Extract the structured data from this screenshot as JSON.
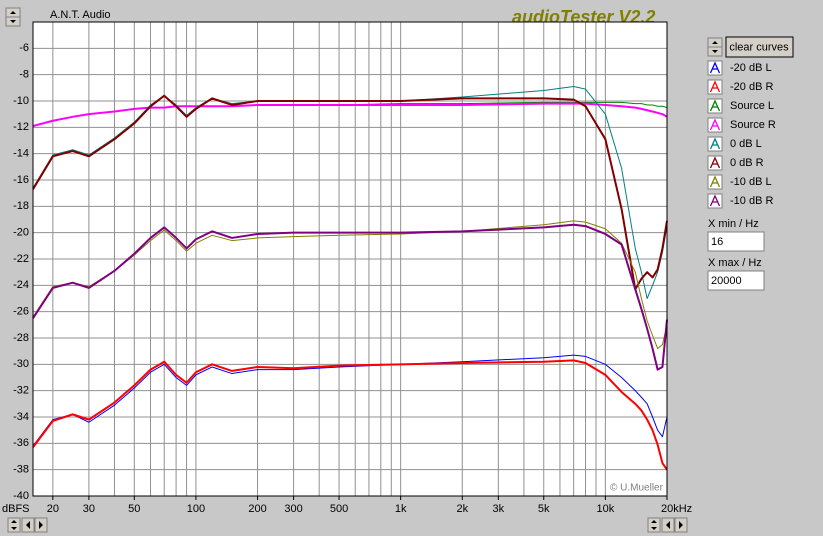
{
  "window": {
    "company": "A.N.T. Audio",
    "app_title": "audioTester V2.2",
    "copyright": "© U.Mueller",
    "y_unit": "dBFS",
    "clear_button": "clear curves",
    "xmin_label": "X min / Hz",
    "xmin_value": "16",
    "xmax_label": "X max / Hz",
    "xmax_value": "20000"
  },
  "chart_data": {
    "type": "line",
    "log_x": true,
    "grid": true,
    "x": [
      16,
      20,
      25,
      30,
      40,
      50,
      60,
      70,
      80,
      90,
      100,
      120,
      150,
      200,
      300,
      500,
      1000,
      2000,
      5000,
      7000,
      8000,
      10000,
      12000,
      14000,
      15000,
      16000,
      17000,
      18000,
      19000,
      20000
    ],
    "xlim": [
      16,
      20000
    ],
    "ylim": [
      -40,
      -4
    ],
    "xticks": [
      20,
      30,
      50,
      100,
      200,
      300,
      500,
      {
        "value": 1000,
        "label": "1k"
      },
      {
        "value": 2000,
        "label": "2k"
      },
      {
        "value": 3000,
        "label": "3k"
      },
      {
        "value": 5000,
        "label": "5k"
      },
      {
        "value": 10000,
        "label": "10k"
      },
      {
        "value": 20000,
        "label": "20kHz"
      }
    ],
    "xgrid": [
      20,
      30,
      40,
      50,
      60,
      70,
      80,
      90,
      100,
      200,
      300,
      400,
      500,
      600,
      700,
      800,
      900,
      1000,
      2000,
      3000,
      4000,
      5000,
      6000,
      7000,
      8000,
      9000,
      10000,
      20000
    ],
    "yticks": [
      -40,
      -38,
      -36,
      -34,
      -32,
      -30,
      -28,
      -26,
      -24,
      -22,
      -20,
      -18,
      -16,
      -14,
      -12,
      -10,
      -8,
      -6
    ],
    "series": [
      {
        "name": "-20 dB L",
        "color": "#0000ff",
        "width": 1,
        "values": [
          -36.2,
          -34.2,
          -33.8,
          -34.4,
          -33.1,
          -31.8,
          -30.6,
          -30.0,
          -31.0,
          -31.6,
          -30.8,
          -30.2,
          -30.7,
          -30.4,
          -30.4,
          -30.2,
          -30.0,
          -29.8,
          -29.5,
          -29.3,
          -29.4,
          -30.0,
          -31.0,
          -32.0,
          -32.5,
          -33.0,
          -34.0,
          -35.0,
          -35.5,
          -34.0
        ]
      },
      {
        "name": "-20 dB R",
        "color": "#ff0000",
        "width": 2,
        "values": [
          -36.3,
          -34.3,
          -33.8,
          -34.2,
          -32.9,
          -31.6,
          -30.4,
          -29.8,
          -30.8,
          -31.4,
          -30.6,
          -30.0,
          -30.5,
          -30.2,
          -30.3,
          -30.1,
          -30.0,
          -29.9,
          -29.8,
          -29.7,
          -29.9,
          -30.8,
          -32.1,
          -33.0,
          -33.5,
          -34.2,
          -35.0,
          -36.1,
          -37.5,
          -38.0
        ]
      },
      {
        "name": "Source L",
        "color": "#008000",
        "width": 1,
        "values": [
          -11.9,
          -11.5,
          -11.2,
          -11.0,
          -10.8,
          -10.6,
          -10.5,
          -10.5,
          -10.4,
          -10.4,
          -10.4,
          -10.4,
          -10.4,
          -10.3,
          -10.3,
          -10.3,
          -10.2,
          -10.2,
          -10.1,
          -10.1,
          -10.1,
          -10.1,
          -10.1,
          -10.2,
          -10.2,
          -10.3,
          -10.3,
          -10.4,
          -10.4,
          -10.5
        ]
      },
      {
        "name": "Source R",
        "color": "#ff00ff",
        "width": 2,
        "values": [
          -11.9,
          -11.5,
          -11.2,
          -11.0,
          -10.8,
          -10.6,
          -10.5,
          -10.5,
          -10.4,
          -10.4,
          -10.4,
          -10.4,
          -10.4,
          -10.3,
          -10.3,
          -10.3,
          -10.3,
          -10.3,
          -10.2,
          -10.2,
          -10.2,
          -10.3,
          -10.4,
          -10.5,
          -10.6,
          -10.7,
          -10.8,
          -10.9,
          -11.0,
          -11.2
        ]
      },
      {
        "name": "0 dB L",
        "color": "#008080",
        "width": 1,
        "values": [
          -16.6,
          -14.1,
          -13.7,
          -14.1,
          -12.8,
          -11.6,
          -10.3,
          -9.6,
          -10.3,
          -11.1,
          -10.5,
          -9.8,
          -10.2,
          -10.0,
          -10.0,
          -10.0,
          -10.0,
          -9.7,
          -9.2,
          -8.9,
          -9.1,
          -11.0,
          -15.1,
          -21.2,
          -23.0,
          -25.0,
          -24.0,
          -23.0,
          -21.5,
          -19.5
        ]
      },
      {
        "name": "0 dB R",
        "color": "#800000",
        "width": 2,
        "values": [
          -16.7,
          -14.2,
          -13.8,
          -14.2,
          -12.9,
          -11.7,
          -10.4,
          -9.6,
          -10.4,
          -11.2,
          -10.6,
          -9.8,
          -10.3,
          -10.0,
          -10.0,
          -10.0,
          -10.0,
          -9.8,
          -9.8,
          -9.9,
          -10.4,
          -12.9,
          -18.2,
          -24.3,
          -23.5,
          -23.0,
          -23.4,
          -22.8,
          -21.2,
          -19.1
        ]
      },
      {
        "name": "-10 dB L",
        "color": "#808000",
        "width": 1,
        "values": [
          -26.4,
          -24.1,
          -23.8,
          -24.1,
          -22.9,
          -21.7,
          -20.6,
          -19.8,
          -20.6,
          -21.4,
          -20.8,
          -20.2,
          -20.6,
          -20.4,
          -20.3,
          -20.2,
          -20.1,
          -19.9,
          -19.4,
          -19.1,
          -19.2,
          -19.7,
          -20.8,
          -23.0,
          -25.0,
          -26.7,
          -27.8,
          -28.8,
          -28.5,
          -27.0
        ]
      },
      {
        "name": "-10 dB R",
        "color": "#800080",
        "width": 2,
        "values": [
          -26.5,
          -24.2,
          -23.8,
          -24.2,
          -22.9,
          -21.6,
          -20.4,
          -19.6,
          -20.4,
          -21.2,
          -20.5,
          -19.9,
          -20.4,
          -20.1,
          -20.0,
          -20.0,
          -20.0,
          -19.9,
          -19.6,
          -19.4,
          -19.5,
          -20.1,
          -20.9,
          -24.3,
          -25.8,
          -27.3,
          -28.8,
          -30.4,
          -30.2,
          -26.6
        ]
      }
    ]
  }
}
